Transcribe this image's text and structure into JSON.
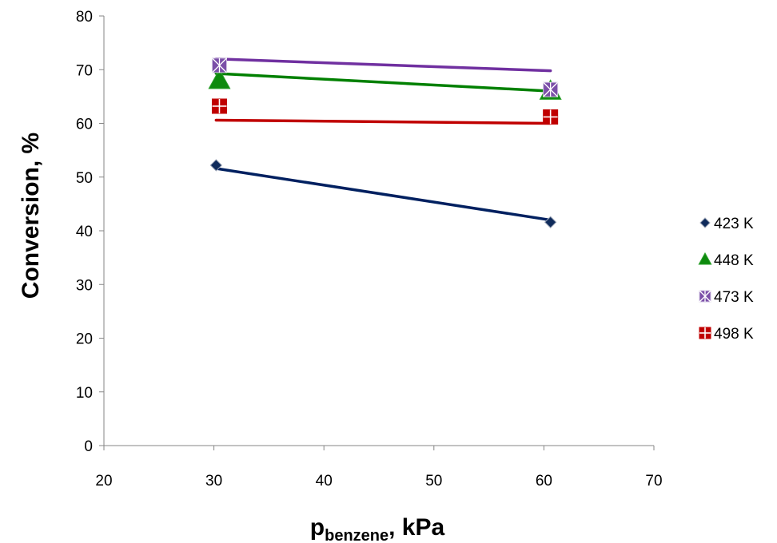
{
  "chart_data": {
    "type": "scatter",
    "xlabel_main": "p",
    "xlabel_sub": "benzene",
    "xlabel_rest": ", kPa",
    "ylabel": "Conversion, %",
    "xlim": [
      20,
      70
    ],
    "ylim": [
      0,
      80
    ],
    "xticks": [
      20,
      30,
      40,
      50,
      60,
      70
    ],
    "yticks": [
      0,
      10,
      20,
      30,
      40,
      50,
      60,
      70,
      80
    ],
    "grid": false,
    "legend_position": "right",
    "series": [
      {
        "name": "423 K",
        "marker": "diamond",
        "color": "#0F2B5B",
        "line_color": "#002060",
        "x": [
          30.2,
          60.6
        ],
        "y": [
          52.2,
          41.6
        ],
        "trend": [
          [
            30.2,
            51.6
          ],
          [
            60.6,
            42.0
          ]
        ]
      },
      {
        "name": "448 K",
        "marker": "triangle",
        "color": "#0E8A0E",
        "line_color": "#008000",
        "x": [
          30.5,
          60.6
        ],
        "y": [
          68.0,
          66.0
        ],
        "trend": [
          [
            30.2,
            69.3
          ],
          [
            60.6,
            66.0
          ]
        ]
      },
      {
        "name": "473 K",
        "marker": "square-x",
        "color": "#7B4FA8",
        "line_color": "#7030A0",
        "x": [
          30.5,
          60.6
        ],
        "y": [
          70.8,
          66.3
        ],
        "trend": [
          [
            30.2,
            72.0
          ],
          [
            60.6,
            69.8
          ]
        ]
      },
      {
        "name": "498 K",
        "marker": "square-plus",
        "color": "#C00000",
        "line_color": "#C00000",
        "x": [
          30.5,
          60.6
        ],
        "y": [
          63.2,
          61.2
        ],
        "trend": [
          [
            30.2,
            60.6
          ],
          [
            60.6,
            60.0
          ]
        ]
      }
    ]
  }
}
